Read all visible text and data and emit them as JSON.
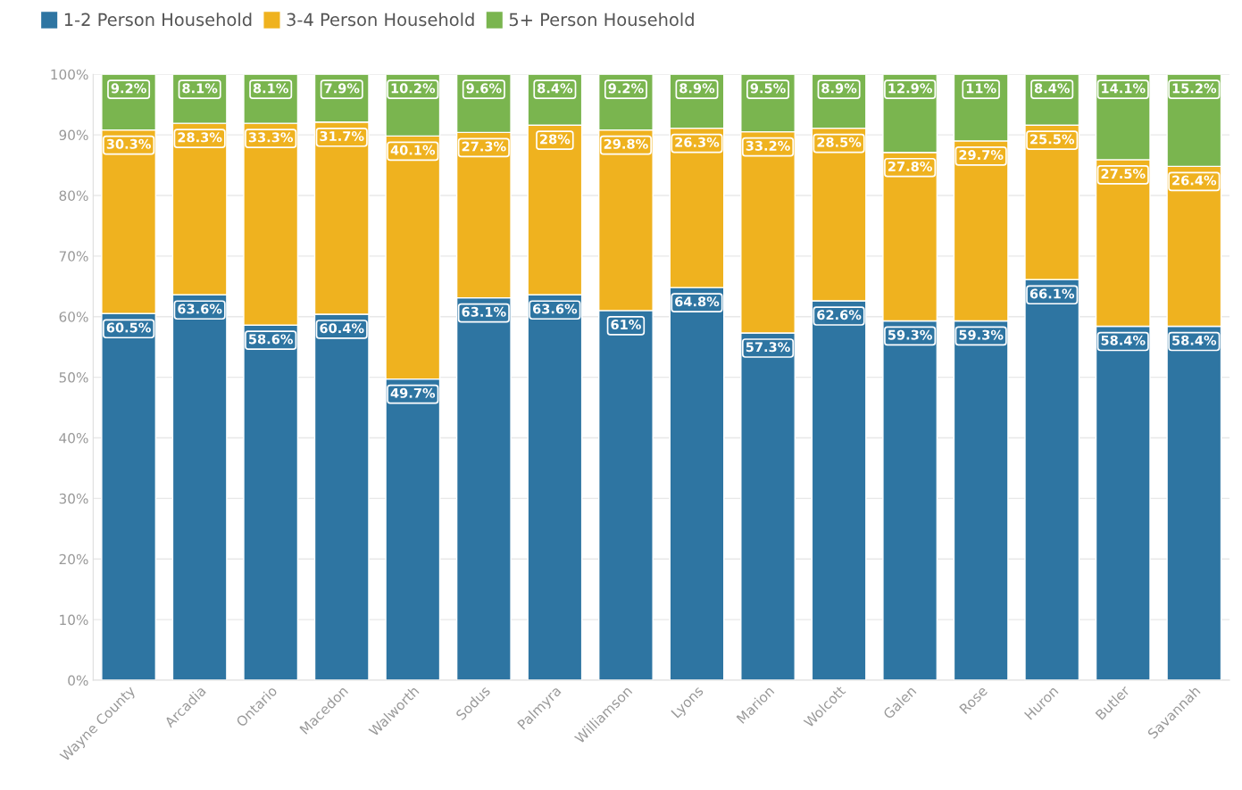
{
  "chart_data": {
    "type": "bar",
    "stacked": true,
    "legend": "top left",
    "grid": "y",
    "categories": [
      "Wayne County",
      "Arcadia",
      "Ontario",
      "Macedon",
      "Walworth",
      "Sodus",
      "Palmyra",
      "Williamson",
      "Lyons",
      "Marion",
      "Wolcott",
      "Galen",
      "Rose",
      "Huron",
      "Butler",
      "Savannah"
    ],
    "series": [
      {
        "name": "1-2 Person Household",
        "color": "#2e75a2",
        "values": [
          60.5,
          63.6,
          58.6,
          60.4,
          49.7,
          63.1,
          63.6,
          61,
          64.8,
          57.3,
          62.6,
          59.3,
          59.3,
          66.1,
          58.4,
          58.4
        ],
        "value_labels": [
          "60.5%",
          "63.6%",
          "58.6%",
          "60.4%",
          "49.7%",
          "63.1%",
          "63.6%",
          "61%",
          "64.8%",
          "57.3%",
          "62.6%",
          "59.3%",
          "59.3%",
          "66.1%",
          "58.4%",
          "58.4%"
        ]
      },
      {
        "name": "3-4 Person Household",
        "color": "#efb21f",
        "values": [
          30.3,
          28.3,
          33.3,
          31.7,
          40.1,
          27.3,
          28,
          29.8,
          26.3,
          33.2,
          28.5,
          27.8,
          29.7,
          25.5,
          27.5,
          26.4
        ],
        "value_labels": [
          "30.3%",
          "28.3%",
          "33.3%",
          "31.7%",
          "40.1%",
          "27.3%",
          "28%",
          "29.8%",
          "26.3%",
          "33.2%",
          "28.5%",
          "27.8%",
          "29.7%",
          "25.5%",
          "27.5%",
          "26.4%"
        ]
      },
      {
        "name": "5+ Person Household",
        "color": "#7ab54f",
        "values": [
          9.2,
          8.1,
          8.1,
          7.9,
          10.2,
          9.6,
          8.4,
          9.2,
          8.9,
          9.5,
          8.9,
          12.9,
          11,
          8.4,
          14.1,
          15.2
        ],
        "value_labels": [
          "9.2%",
          "8.1%",
          "8.1%",
          "7.9%",
          "10.2%",
          "9.6%",
          "8.4%",
          "9.2%",
          "8.9%",
          "9.5%",
          "8.9%",
          "12.9%",
          "11%",
          "8.4%",
          "14.1%",
          "15.2%"
        ]
      }
    ],
    "ylim": [
      0,
      100
    ],
    "yticks": [
      {
        "value": 0,
        "label": "0%"
      },
      {
        "value": 10,
        "label": "10%"
      },
      {
        "value": 20,
        "label": "20%"
      },
      {
        "value": 30,
        "label": "30%"
      },
      {
        "value": 40,
        "label": "40%"
      },
      {
        "value": 50,
        "label": "50%"
      },
      {
        "value": 60,
        "label": "60%"
      },
      {
        "value": 70,
        "label": "70%"
      },
      {
        "value": 80,
        "label": "80%"
      },
      {
        "value": 90,
        "label": "90%"
      },
      {
        "value": 100,
        "label": "100%"
      }
    ]
  }
}
